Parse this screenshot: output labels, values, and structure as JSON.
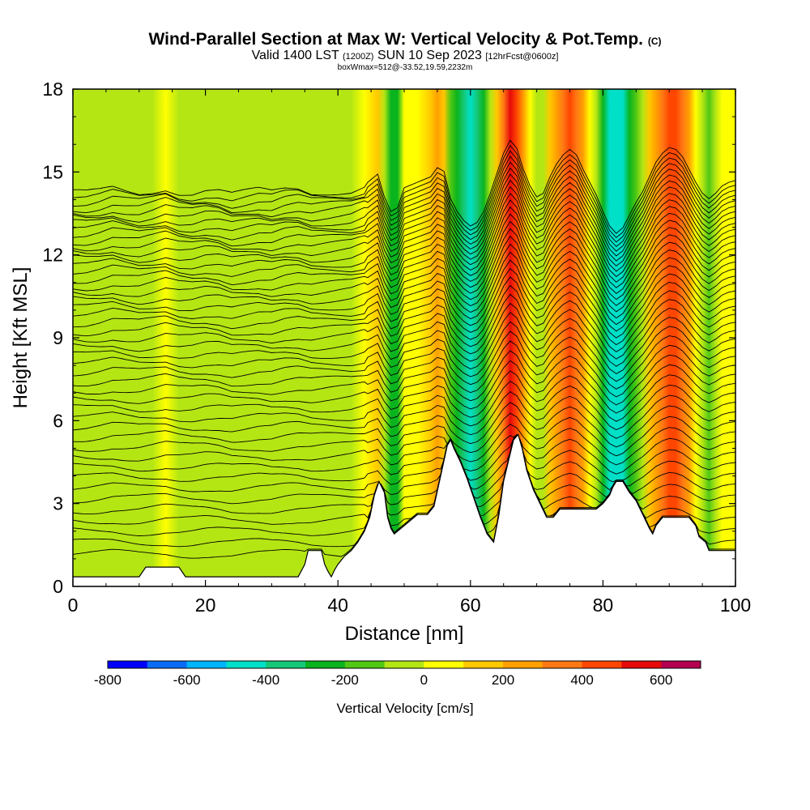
{
  "header": {
    "title_main": "Wind-Parallel Section at Max W: Vertical Velocity & Pot.Temp.",
    "title_mark": "(C)",
    "valid_prefix": "Valid 1400 LST",
    "valid_utc": "(1200Z)",
    "valid_date": "SUN 10 Sep 2023",
    "forecast": "[12hrFcst@0600z]",
    "box_info": "boxWmax=512@-33.52,19.59,2232m"
  },
  "chart_data": {
    "type": "heatmap",
    "xlabel": "Distance [nm]",
    "ylabel": "Height [Kft MSL]",
    "xlim": [
      0,
      100
    ],
    "ylim": [
      0,
      18
    ],
    "x_ticks": [
      0,
      20,
      40,
      60,
      80,
      100
    ],
    "y_ticks": [
      0,
      3,
      6,
      9,
      12,
      15,
      18
    ],
    "colorbar": {
      "title": "Vertical Velocity [cm/s]",
      "min": -800,
      "max": 700,
      "labels": [
        -800,
        -600,
        -400,
        -200,
        0,
        200,
        400,
        600
      ],
      "colors": [
        "#0000ff",
        "#0a6cf6",
        "#00b4ff",
        "#00e0c8",
        "#14c878",
        "#0ab41e",
        "#50c814",
        "#b4e614",
        "#ffff00",
        "#ffc800",
        "#ffa000",
        "#ff7814",
        "#ff4600",
        "#e60a0a",
        "#b40050"
      ]
    },
    "terrain_kft": [
      [
        0,
        0.35
      ],
      [
        10,
        0.35
      ],
      [
        11,
        0.7
      ],
      [
        16,
        0.7
      ],
      [
        17,
        0.35
      ],
      [
        34,
        0.35
      ],
      [
        35,
        0.8
      ],
      [
        35.5,
        1.3
      ],
      [
        37.5,
        1.3
      ],
      [
        38,
        0.8
      ],
      [
        38.5,
        0.55
      ],
      [
        39,
        0.35
      ],
      [
        39.5,
        0.6
      ],
      [
        40,
        0.8
      ],
      [
        41,
        1.1
      ],
      [
        42,
        1.3
      ],
      [
        43,
        1.6
      ],
      [
        44,
        2.0
      ],
      [
        44.8,
        2.5
      ],
      [
        45.5,
        3.3
      ],
      [
        46.2,
        3.8
      ],
      [
        47,
        3.4
      ],
      [
        47.5,
        2.5
      ],
      [
        48,
        2.1
      ],
      [
        48.5,
        1.9
      ],
      [
        49.5,
        2.1
      ],
      [
        50.5,
        2.3
      ],
      [
        52,
        2.6
      ],
      [
        53.5,
        2.6
      ],
      [
        54.5,
        2.9
      ],
      [
        55.5,
        4.0
      ],
      [
        56.5,
        5.1
      ],
      [
        57,
        5.3
      ],
      [
        57.5,
        5.0
      ],
      [
        58.5,
        4.5
      ],
      [
        59.5,
        3.9
      ],
      [
        60.5,
        3.2
      ],
      [
        61.5,
        2.5
      ],
      [
        62.5,
        1.9
      ],
      [
        63.5,
        1.6
      ],
      [
        64.3,
        2.6
      ],
      [
        65,
        3.8
      ],
      [
        65.8,
        4.6
      ],
      [
        66.5,
        5.3
      ],
      [
        67.2,
        5.5
      ],
      [
        67.8,
        5.0
      ],
      [
        68.5,
        4.2
      ],
      [
        69.5,
        3.5
      ],
      [
        70.5,
        3.0
      ],
      [
        71.5,
        2.5
      ],
      [
        72.5,
        2.5
      ],
      [
        73.5,
        2.8
      ],
      [
        79,
        2.8
      ],
      [
        80,
        3.0
      ],
      [
        81,
        3.3
      ],
      [
        81.5,
        3.6
      ],
      [
        82,
        3.8
      ],
      [
        83,
        3.8
      ],
      [
        84,
        3.4
      ],
      [
        85,
        3.1
      ],
      [
        86,
        2.6
      ],
      [
        87,
        2.1
      ],
      [
        87.5,
        1.9
      ],
      [
        88,
        2.2
      ],
      [
        89,
        2.5
      ],
      [
        93,
        2.5
      ],
      [
        94,
        2.2
      ],
      [
        94.5,
        1.8
      ],
      [
        95.5,
        1.6
      ],
      [
        96,
        1.3
      ],
      [
        100,
        1.3
      ]
    ],
    "w_profile_cms": [
      [
        0,
        -60
      ],
      [
        2,
        -70
      ],
      [
        4,
        -50
      ],
      [
        6,
        -10
      ],
      [
        8,
        -40
      ],
      [
        10,
        -60
      ],
      [
        12,
        -30
      ],
      [
        14,
        10
      ],
      [
        16,
        -40
      ],
      [
        18,
        -50
      ],
      [
        20,
        -20
      ],
      [
        22,
        -30
      ],
      [
        24,
        -80
      ],
      [
        26,
        -60
      ],
      [
        28,
        -40
      ],
      [
        30,
        -60
      ],
      [
        32,
        -20
      ],
      [
        34,
        -10
      ],
      [
        36,
        -50
      ],
      [
        38,
        -40
      ],
      [
        40,
        -30
      ],
      [
        42,
        -20
      ],
      [
        44,
        30
      ],
      [
        46,
        150
      ],
      [
        47,
        -100
      ],
      [
        48,
        -260
      ],
      [
        49,
        -220
      ],
      [
        50,
        0
      ],
      [
        52,
        60
      ],
      [
        54,
        120
      ],
      [
        55,
        220
      ],
      [
        56,
        180
      ],
      [
        57,
        -120
      ],
      [
        58,
        -260
      ],
      [
        59,
        -360
      ],
      [
        60,
        -420
      ],
      [
        61,
        -380
      ],
      [
        62,
        -260
      ],
      [
        63,
        -60
      ],
      [
        64,
        160
      ],
      [
        65,
        380
      ],
      [
        66,
        520
      ],
      [
        67,
        430
      ],
      [
        68,
        200
      ],
      [
        69,
        20
      ],
      [
        70,
        -100
      ],
      [
        71,
        -60
      ],
      [
        72,
        120
      ],
      [
        73,
        260
      ],
      [
        74,
        360
      ],
      [
        75,
        420
      ],
      [
        76,
        360
      ],
      [
        77,
        200
      ],
      [
        78,
        60
      ],
      [
        79,
        -80
      ],
      [
        80,
        -260
      ],
      [
        81,
        -420
      ],
      [
        82,
        -500
      ],
      [
        83,
        -440
      ],
      [
        84,
        -300
      ],
      [
        85,
        -160
      ],
      [
        86,
        -40
      ],
      [
        87,
        120
      ],
      [
        88,
        280
      ],
      [
        89,
        380
      ],
      [
        90,
        440
      ],
      [
        91,
        420
      ],
      [
        92,
        340
      ],
      [
        93,
        200
      ],
      [
        94,
        60
      ],
      [
        95,
        -60
      ],
      [
        96,
        -120
      ],
      [
        97,
        -60
      ],
      [
        98,
        20
      ],
      [
        99,
        60
      ],
      [
        100,
        80
      ]
    ]
  }
}
